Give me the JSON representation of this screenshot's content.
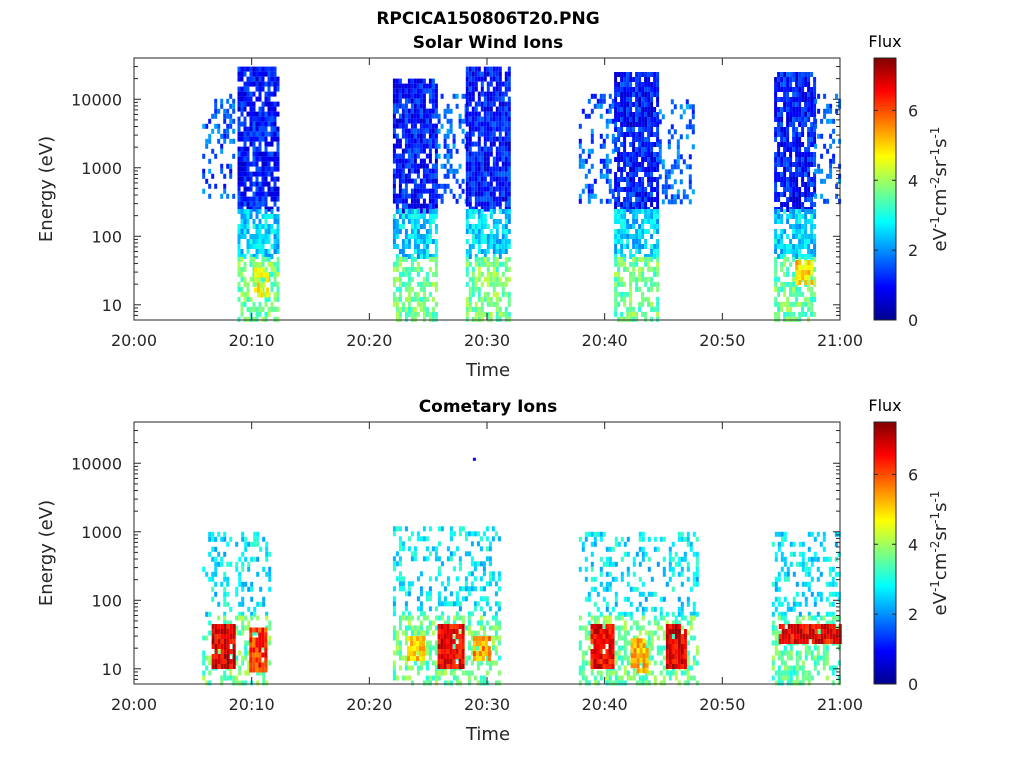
{
  "figure": {
    "main_title": "RPCICA150806T20.PNG"
  },
  "colorbar": {
    "title": "Flux",
    "unit_label": "eV-1cm-2sr-1s-1",
    "ticks": [
      "0",
      "2",
      "4",
      "6"
    ],
    "range": [
      0,
      7.5
    ],
    "colormap": "jet"
  },
  "chart_data": [
    {
      "type": "heatmap",
      "title": "Solar Wind Ions",
      "xlabel": "Time",
      "ylabel": "Energy (eV)",
      "x_ticks": [
        "20:00",
        "20:10",
        "20:20",
        "20:30",
        "20:40",
        "20:50",
        "21:00"
      ],
      "x_range_minutes": [
        0,
        60
      ],
      "y_scale": "log",
      "y_ticks": [
        "10",
        "100",
        "1000",
        "10000"
      ],
      "y_range": [
        6,
        40000
      ],
      "clusters": [
        {
          "t": [
            5.8,
            8.6
          ],
          "e_min": 300,
          "e_max": 12000,
          "flux": 1.6,
          "density": 0.3
        },
        {
          "t": [
            8.8,
            12.2
          ],
          "e_min": 250,
          "e_max": 30000,
          "flux": 1.1,
          "density": 0.85
        },
        {
          "t": [
            8.8,
            12.2
          ],
          "e_min": 50,
          "e_max": 250,
          "flux": 2.5,
          "density": 0.75
        },
        {
          "t": [
            8.8,
            12.2
          ],
          "e_min": 6,
          "e_max": 50,
          "flux": 3.6,
          "density": 0.65
        },
        {
          "t": [
            10.2,
            11.4
          ],
          "e_min": 15,
          "e_max": 35,
          "flux": 4.6,
          "density": 0.8
        },
        {
          "t": [
            22.0,
            25.8
          ],
          "e_min": 250,
          "e_max": 20000,
          "flux": 1.1,
          "density": 0.85
        },
        {
          "t": [
            22.0,
            25.8
          ],
          "e_min": 50,
          "e_max": 250,
          "flux": 2.5,
          "density": 0.75
        },
        {
          "t": [
            22.0,
            25.8
          ],
          "e_min": 6,
          "e_max": 50,
          "flux": 3.6,
          "density": 0.6
        },
        {
          "t": [
            25.8,
            28.2
          ],
          "e_min": 300,
          "e_max": 12000,
          "flux": 1.7,
          "density": 0.3
        },
        {
          "t": [
            28.2,
            31.8
          ],
          "e_min": 250,
          "e_max": 30000,
          "flux": 1.1,
          "density": 0.85
        },
        {
          "t": [
            28.2,
            31.8
          ],
          "e_min": 50,
          "e_max": 250,
          "flux": 2.5,
          "density": 0.75
        },
        {
          "t": [
            28.2,
            31.8
          ],
          "e_min": 6,
          "e_max": 50,
          "flux": 3.7,
          "density": 0.65
        },
        {
          "t": [
            37.8,
            40.8
          ],
          "e_min": 300,
          "e_max": 12000,
          "flux": 1.6,
          "density": 0.3
        },
        {
          "t": [
            40.8,
            44.6
          ],
          "e_min": 250,
          "e_max": 25000,
          "flux": 1.1,
          "density": 0.85
        },
        {
          "t": [
            40.8,
            44.6
          ],
          "e_min": 50,
          "e_max": 250,
          "flux": 2.5,
          "density": 0.75
        },
        {
          "t": [
            40.8,
            44.6
          ],
          "e_min": 6,
          "e_max": 50,
          "flux": 3.6,
          "density": 0.6
        },
        {
          "t": [
            44.6,
            47.5
          ],
          "e_min": 300,
          "e_max": 10000,
          "flux": 1.7,
          "density": 0.28
        },
        {
          "t": [
            54.4,
            57.8
          ],
          "e_min": 250,
          "e_max": 25000,
          "flux": 1.1,
          "density": 0.85
        },
        {
          "t": [
            54.4,
            57.8
          ],
          "e_min": 50,
          "e_max": 250,
          "flux": 2.5,
          "density": 0.75
        },
        {
          "t": [
            54.4,
            57.8
          ],
          "e_min": 6,
          "e_max": 50,
          "flux": 3.6,
          "density": 0.65
        },
        {
          "t": [
            56.2,
            57.6
          ],
          "e_min": 20,
          "e_max": 45,
          "flux": 5.0,
          "density": 0.8
        },
        {
          "t": [
            57.8,
            60.0
          ],
          "e_min": 300,
          "e_max": 12000,
          "flux": 1.7,
          "density": 0.3
        }
      ]
    },
    {
      "type": "heatmap",
      "title": "Cometary Ions",
      "xlabel": "Time",
      "ylabel": "Energy (eV)",
      "x_ticks": [
        "20:00",
        "20:10",
        "20:20",
        "20:30",
        "20:40",
        "20:50",
        "21:00"
      ],
      "x_range_minutes": [
        0,
        60
      ],
      "y_scale": "log",
      "y_ticks": [
        "10",
        "100",
        "1000",
        "10000"
      ],
      "y_range": [
        6,
        40000
      ],
      "clusters": [
        {
          "t": [
            5.8,
            11.5
          ],
          "e_min": 60,
          "e_max": 1000,
          "flux": 2.7,
          "density": 0.3
        },
        {
          "t": [
            5.8,
            11.5
          ],
          "e_min": 6,
          "e_max": 60,
          "flux": 3.6,
          "density": 0.5
        },
        {
          "t": [
            6.6,
            8.6
          ],
          "e_min": 10,
          "e_max": 45,
          "flux": 6.8,
          "density": 0.95
        },
        {
          "t": [
            9.8,
            11.2
          ],
          "e_min": 10,
          "e_max": 40,
          "flux": 6.2,
          "density": 0.95
        },
        {
          "t": [
            22.0,
            31.0
          ],
          "e_min": 60,
          "e_max": 1200,
          "flux": 2.7,
          "density": 0.3
        },
        {
          "t": [
            22.0,
            31.0
          ],
          "e_min": 6,
          "e_max": 60,
          "flux": 3.6,
          "density": 0.5
        },
        {
          "t": [
            23.2,
            24.6
          ],
          "e_min": 15,
          "e_max": 30,
          "flux": 5.2,
          "density": 0.9
        },
        {
          "t": [
            25.8,
            28.0
          ],
          "e_min": 10,
          "e_max": 45,
          "flux": 6.6,
          "density": 0.95
        },
        {
          "t": [
            28.8,
            30.2
          ],
          "e_min": 15,
          "e_max": 30,
          "flux": 5.4,
          "density": 0.9
        },
        {
          "t": [
            37.8,
            47.8
          ],
          "e_min": 60,
          "e_max": 1000,
          "flux": 2.7,
          "density": 0.3
        },
        {
          "t": [
            37.8,
            47.8
          ],
          "e_min": 6,
          "e_max": 60,
          "flux": 3.6,
          "density": 0.5
        },
        {
          "t": [
            38.8,
            40.6
          ],
          "e_min": 10,
          "e_max": 45,
          "flux": 6.6,
          "density": 0.95
        },
        {
          "t": [
            42.2,
            43.6
          ],
          "e_min": 10,
          "e_max": 28,
          "flux": 5.2,
          "density": 0.9
        },
        {
          "t": [
            45.2,
            46.8
          ],
          "e_min": 10,
          "e_max": 45,
          "flux": 6.8,
          "density": 0.95
        },
        {
          "t": [
            54.2,
            60.0
          ],
          "e_min": 60,
          "e_max": 1000,
          "flux": 2.7,
          "density": 0.3
        },
        {
          "t": [
            54.2,
            60.0
          ],
          "e_min": 6,
          "e_max": 60,
          "flux": 3.5,
          "density": 0.55
        },
        {
          "t": [
            54.8,
            60.0
          ],
          "e_min": 25,
          "e_max": 45,
          "flux": 6.6,
          "density": 0.9
        }
      ],
      "outliers": [
        {
          "t": 28.8,
          "e": 12000,
          "flux": 1.0
        }
      ]
    }
  ]
}
